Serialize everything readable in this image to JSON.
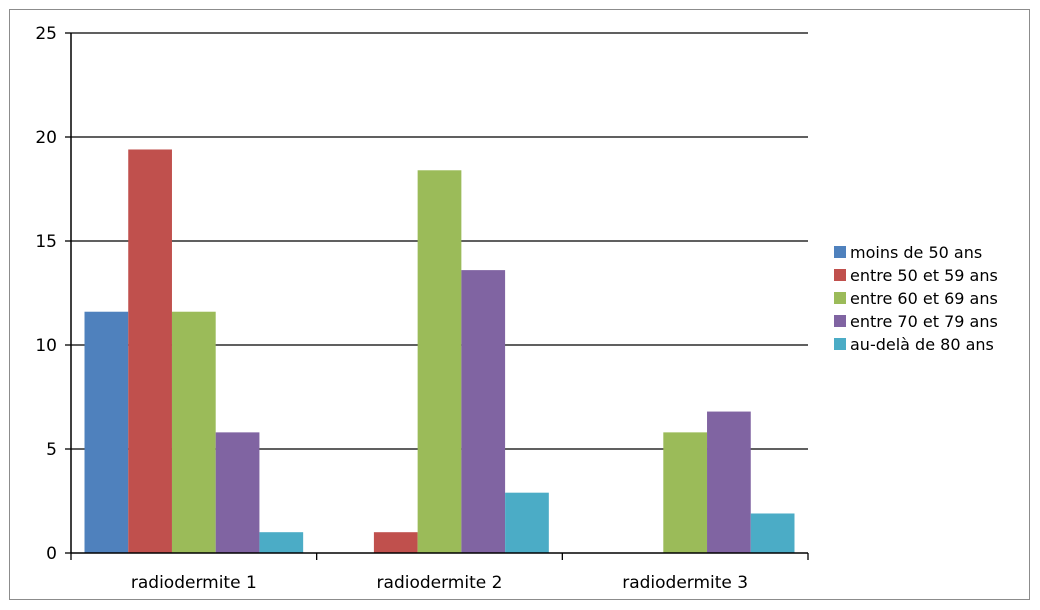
{
  "chart_data": {
    "type": "bar",
    "title": "",
    "xlabel": "",
    "ylabel": "",
    "categories": [
      "radiodermite 1",
      "radiodermite 2",
      "radiodermite 3"
    ],
    "ylim": [
      0,
      25
    ],
    "yticks": [
      0,
      5,
      10,
      15,
      20,
      25
    ],
    "grid": true,
    "legend_position": "right",
    "series": [
      {
        "name": "moins de 50 ans",
        "color": "#4f81bd",
        "values": [
          11.6,
          0,
          0
        ]
      },
      {
        "name": "entre 50 et 59 ans",
        "color": "#c0504d",
        "values": [
          19.4,
          1,
          0
        ]
      },
      {
        "name": "entre 60 et 69 ans",
        "color": "#9bbb59",
        "values": [
          11.6,
          18.4,
          5.8
        ]
      },
      {
        "name": "entre 70 et 79 ans",
        "color": "#8064a2",
        "values": [
          5.8,
          13.6,
          6.8
        ]
      },
      {
        "name": "au-delà de 80 ans",
        "color": "#4bacc6",
        "values": [
          1,
          2.9,
          1.9
        ]
      }
    ]
  }
}
